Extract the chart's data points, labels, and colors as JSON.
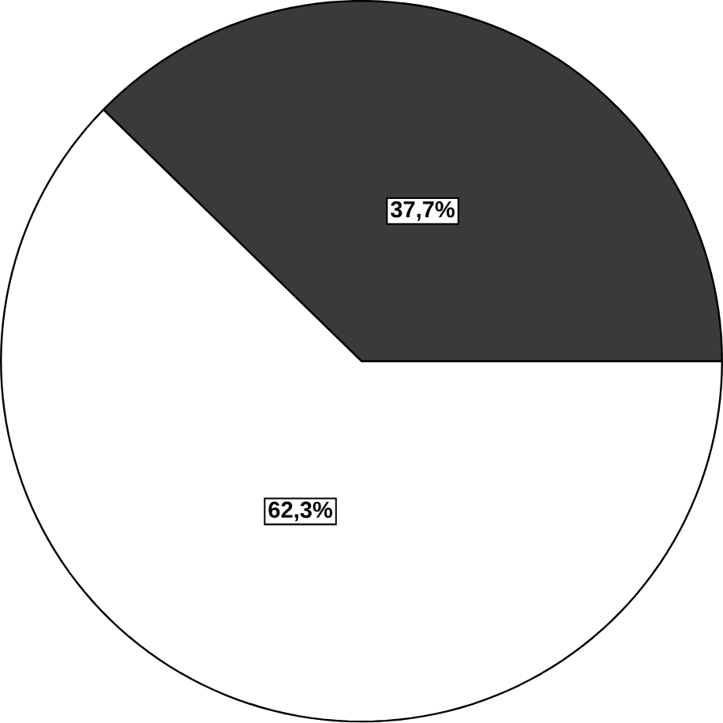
{
  "chart_data": {
    "type": "pie",
    "categories": [
      null,
      null
    ],
    "values": [
      37.7,
      62.3
    ],
    "colors": [
      "#3a3a3a",
      "#ffffff"
    ],
    "value_labels": [
      "37,7%",
      "62,3%"
    ]
  }
}
